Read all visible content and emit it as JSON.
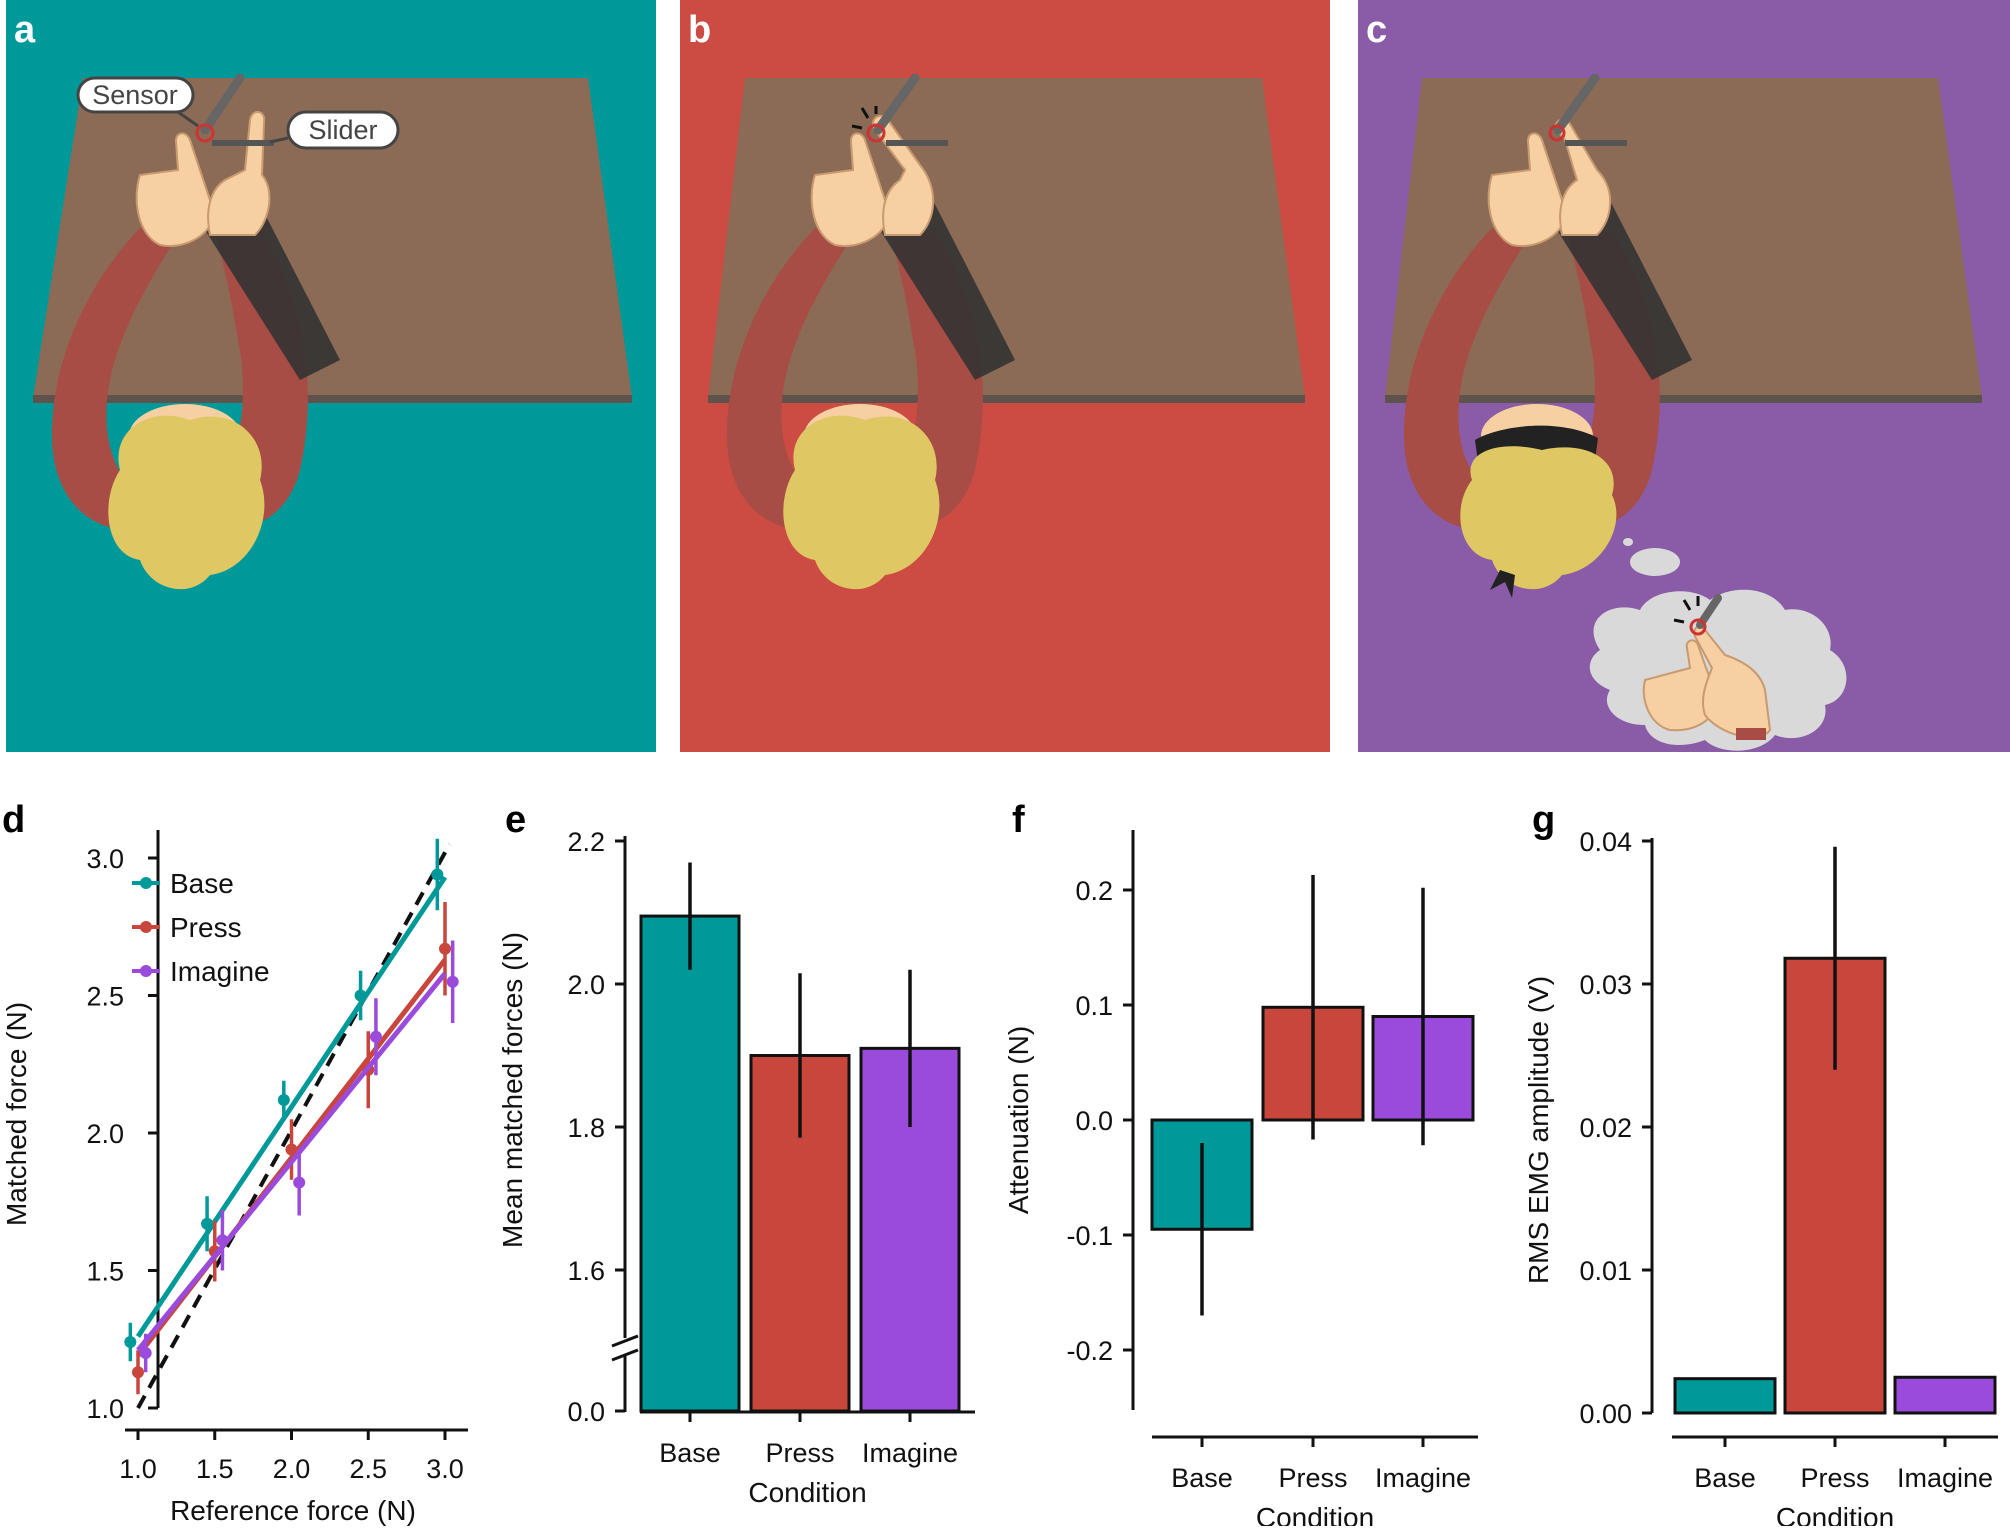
{
  "panels": {
    "a": {
      "letter": "a",
      "bg": "#009999",
      "callouts": {
        "sensor": "Sensor",
        "slider": "Slider"
      }
    },
    "b": {
      "letter": "b",
      "bg": "#CC4B42"
    },
    "c": {
      "letter": "c",
      "bg": "#8A5BA6"
    }
  },
  "colors": {
    "base": "#009999",
    "press": "#C8463C",
    "imagine": "#9B4BDB",
    "table": "#8B6B55",
    "sleeve": "#A84D45",
    "skin": "#F6CFA2",
    "hair": "#DFC864",
    "cloud": "#D9D9D9"
  },
  "chart_data": [
    {
      "panel": "d",
      "type": "line",
      "xlabel": "Reference force (N)",
      "ylabel": "Matched force (N)",
      "xlim": [
        0.9,
        3.1
      ],
      "ylim": [
        1.0,
        3.0
      ],
      "xticks": [
        "1.0",
        "1.5",
        "2.0",
        "2.5",
        "3.0"
      ],
      "yticks": [
        "1.0",
        "1.5",
        "2.0",
        "2.5",
        "3.0"
      ],
      "legend": [
        "Base",
        "Press",
        "Imagine"
      ],
      "identity_line": true,
      "series": [
        {
          "name": "Base",
          "x": [
            0.95,
            1.45,
            1.95,
            2.45,
            2.95
          ],
          "y": [
            1.24,
            1.67,
            2.12,
            2.5,
            2.94
          ],
          "err": [
            0.07,
            0.1,
            0.07,
            0.09,
            0.13
          ],
          "fit": [
            [
              1.0,
              1.26
            ],
            [
              3.0,
              2.93
            ]
          ]
        },
        {
          "name": "Press",
          "x": [
            1.0,
            1.5,
            2.0,
            2.5,
            3.0
          ],
          "y": [
            1.13,
            1.57,
            1.94,
            2.23,
            2.67
          ],
          "err": [
            0.08,
            0.11,
            0.11,
            0.14,
            0.17
          ],
          "fit": [
            [
              1.0,
              1.19
            ],
            [
              3.0,
              2.63
            ]
          ]
        },
        {
          "name": "Imagine",
          "x": [
            1.05,
            1.55,
            2.05,
            2.55,
            3.05
          ],
          "y": [
            1.2,
            1.61,
            1.82,
            2.35,
            2.55
          ],
          "err": [
            0.07,
            0.11,
            0.12,
            0.14,
            0.15
          ],
          "fit": [
            [
              1.0,
              1.21
            ],
            [
              3.0,
              2.58
            ]
          ]
        }
      ]
    },
    {
      "panel": "e",
      "type": "bar",
      "categories": [
        "Base",
        "Press",
        "Imagine"
      ],
      "values": [
        2.095,
        1.9,
        1.91
      ],
      "errors": [
        0.075,
        0.115,
        0.11
      ],
      "ylabel": "Mean matched forces (N)",
      "xlabel": "Condition",
      "ylim": [
        1.5,
        2.2
      ],
      "yticks": [
        "0.0",
        "1.6",
        "1.8",
        "2.0",
        "2.2"
      ],
      "axis_break": true
    },
    {
      "panel": "f",
      "type": "bar",
      "categories": [
        "Base",
        "Press",
        "Imagine"
      ],
      "values": [
        -0.095,
        0.098,
        0.09
      ],
      "errors": [
        0.075,
        0.115,
        0.112
      ],
      "ylabel": "Attenuation (N)",
      "xlabel": "Condition",
      "ylim": [
        -0.25,
        0.25
      ],
      "yticks": [
        "-0.2",
        "-0.1",
        "0.0",
        "0.1",
        "0.2"
      ]
    },
    {
      "panel": "g",
      "type": "bar",
      "categories": [
        "Base",
        "Press",
        "Imagine"
      ],
      "values": [
        0.0024,
        0.0318,
        0.0025
      ],
      "errors": [
        0,
        0.0078,
        0
      ],
      "ylabel": "RMS EMG amplitude (V)",
      "xlabel": "Condition",
      "ylim": [
        0.0,
        0.04
      ],
      "yticks": [
        "0.00",
        "0.01",
        "0.02",
        "0.03",
        "0.04"
      ]
    }
  ]
}
